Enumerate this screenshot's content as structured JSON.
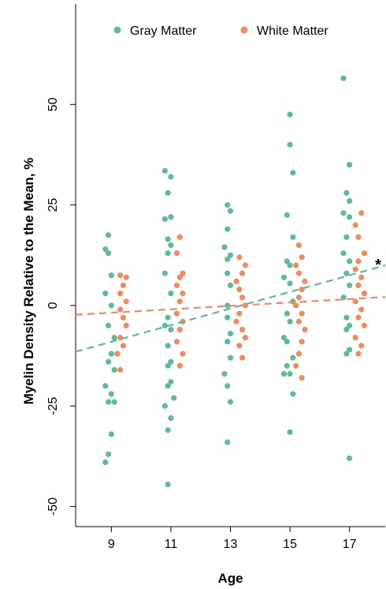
{
  "chart_data": {
    "type": "scatter",
    "title": "",
    "xlabel": "Age",
    "ylabel": "Myelin Density Relative to the Mean, %",
    "xlim": [
      7.8,
      18.2
    ],
    "ylim": [
      -55,
      75
    ],
    "x_ticks": [
      9,
      11,
      13,
      15,
      17
    ],
    "x_tick_labels": [
      "9",
      "11",
      "13",
      "15",
      "17"
    ],
    "y_ticks": [
      -50,
      -25,
      0,
      25,
      50
    ],
    "y_tick_labels": [
      "-50",
      "-25",
      "0",
      "25",
      "50"
    ],
    "grid": false,
    "legend_position": "top",
    "annotation": "*",
    "series": [
      {
        "name": "Gray Matter",
        "color": "#5dbb97",
        "trend": {
          "x": [
            7.8,
            18.2
          ],
          "y": [
            -11.5,
            10.0
          ],
          "style": "dashed"
        },
        "points": [
          [
            8.9,
            17.5
          ],
          [
            8.8,
            14
          ],
          [
            8.9,
            13
          ],
          [
            9.0,
            7.5
          ],
          [
            8.8,
            3
          ],
          [
            9.0,
            0
          ],
          [
            8.9,
            -5
          ],
          [
            9.1,
            -8
          ],
          [
            9.0,
            -12
          ],
          [
            8.9,
            -14
          ],
          [
            9.1,
            -16
          ],
          [
            8.8,
            -20
          ],
          [
            9.0,
            -22
          ],
          [
            9.1,
            -24
          ],
          [
            8.9,
            -24
          ],
          [
            9.0,
            -32
          ],
          [
            8.9,
            -37
          ],
          [
            8.8,
            -39
          ],
          [
            10.8,
            33.5
          ],
          [
            11.0,
            32
          ],
          [
            10.9,
            28
          ],
          [
            11.0,
            22
          ],
          [
            10.8,
            21.5
          ],
          [
            10.9,
            16.5
          ],
          [
            11.0,
            15
          ],
          [
            10.9,
            13
          ],
          [
            10.8,
            8
          ],
          [
            11.0,
            3
          ],
          [
            10.9,
            -3
          ],
          [
            10.8,
            -5
          ],
          [
            11.0,
            -6
          ],
          [
            10.9,
            -10
          ],
          [
            11.0,
            -14
          ],
          [
            10.9,
            -15
          ],
          [
            11.0,
            -19
          ],
          [
            10.9,
            -20
          ],
          [
            11.1,
            -23
          ],
          [
            10.8,
            -25
          ],
          [
            11.0,
            -28
          ],
          [
            10.9,
            -31
          ],
          [
            10.9,
            -44.5
          ],
          [
            12.9,
            25
          ],
          [
            13.0,
            23.5
          ],
          [
            12.9,
            19
          ],
          [
            12.8,
            14.5
          ],
          [
            13.0,
            12.5
          ],
          [
            12.9,
            11.5
          ],
          [
            12.9,
            8
          ],
          [
            13.0,
            5
          ],
          [
            12.9,
            0
          ],
          [
            12.9,
            -3
          ],
          [
            13.0,
            -7
          ],
          [
            12.9,
            -9
          ],
          [
            13.0,
            -13
          ],
          [
            12.8,
            -17
          ],
          [
            12.9,
            -20
          ],
          [
            13.0,
            -24
          ],
          [
            12.9,
            -34
          ],
          [
            15.0,
            47.5
          ],
          [
            15.0,
            40
          ],
          [
            15.1,
            33
          ],
          [
            14.9,
            22.5
          ],
          [
            15.1,
            17
          ],
          [
            14.9,
            11
          ],
          [
            15.0,
            10
          ],
          [
            14.8,
            7
          ],
          [
            15.0,
            5.5
          ],
          [
            15.1,
            1
          ],
          [
            14.9,
            -2
          ],
          [
            15.0,
            -4
          ],
          [
            14.8,
            -8
          ],
          [
            14.9,
            -9
          ],
          [
            15.1,
            -13
          ],
          [
            14.9,
            -15
          ],
          [
            15.0,
            -17
          ],
          [
            14.8,
            -17
          ],
          [
            15.1,
            -22
          ],
          [
            15.0,
            -31.5
          ],
          [
            16.8,
            56.5
          ],
          [
            17.0,
            35
          ],
          [
            16.9,
            28
          ],
          [
            17.0,
            26
          ],
          [
            16.8,
            23
          ],
          [
            17.0,
            22
          ],
          [
            16.9,
            17
          ],
          [
            16.8,
            13
          ],
          [
            17.0,
            11
          ],
          [
            16.9,
            8
          ],
          [
            17.0,
            5
          ],
          [
            16.8,
            2
          ],
          [
            16.9,
            -3
          ],
          [
            17.0,
            -5
          ],
          [
            16.9,
            -6
          ],
          [
            17.0,
            -11
          ],
          [
            16.9,
            -12
          ],
          [
            17.0,
            -38
          ]
        ]
      },
      {
        "name": "White Matter",
        "color": "#f28a5e",
        "trend": {
          "x": [
            7.8,
            18.2
          ],
          "y": [
            -2.3,
            2.1
          ],
          "style": "dashed"
        },
        "points": [
          [
            9.3,
            7.5
          ],
          [
            9.5,
            7
          ],
          [
            9.4,
            5
          ],
          [
            9.3,
            3
          ],
          [
            9.5,
            1
          ],
          [
            9.3,
            -1
          ],
          [
            9.4,
            -3
          ],
          [
            9.5,
            -5
          ],
          [
            9.3,
            -8
          ],
          [
            9.4,
            -10
          ],
          [
            9.2,
            -12
          ],
          [
            9.3,
            -16
          ],
          [
            11.3,
            17
          ],
          [
            11.2,
            13
          ],
          [
            11.4,
            8
          ],
          [
            11.3,
            7
          ],
          [
            11.2,
            5
          ],
          [
            11.4,
            3
          ],
          [
            11.3,
            1
          ],
          [
            11.2,
            -2
          ],
          [
            11.4,
            -4
          ],
          [
            11.3,
            -6
          ],
          [
            11.2,
            -9
          ],
          [
            11.4,
            -12
          ],
          [
            11.3,
            -15
          ],
          [
            13.3,
            12
          ],
          [
            13.5,
            10
          ],
          [
            13.4,
            8
          ],
          [
            13.2,
            6
          ],
          [
            13.3,
            4
          ],
          [
            13.4,
            2
          ],
          [
            13.5,
            0
          ],
          [
            13.3,
            -2
          ],
          [
            13.2,
            -4
          ],
          [
            13.4,
            -6
          ],
          [
            13.5,
            -8
          ],
          [
            13.3,
            -10
          ],
          [
            13.4,
            -13
          ],
          [
            15.3,
            15
          ],
          [
            15.4,
            12
          ],
          [
            15.2,
            10
          ],
          [
            15.3,
            8
          ],
          [
            15.5,
            6
          ],
          [
            15.4,
            4
          ],
          [
            15.3,
            2
          ],
          [
            15.2,
            0
          ],
          [
            15.4,
            -2
          ],
          [
            15.3,
            -4
          ],
          [
            15.5,
            -6
          ],
          [
            15.4,
            -9
          ],
          [
            15.3,
            -12
          ],
          [
            15.2,
            -15
          ],
          [
            15.4,
            -18
          ],
          [
            17.4,
            23
          ],
          [
            17.2,
            20
          ],
          [
            17.3,
            17
          ],
          [
            17.5,
            13
          ],
          [
            17.3,
            11
          ],
          [
            17.2,
            9
          ],
          [
            17.4,
            7
          ],
          [
            17.3,
            5
          ],
          [
            17.5,
            3
          ],
          [
            17.2,
            1
          ],
          [
            17.4,
            -1
          ],
          [
            17.3,
            -3
          ],
          [
            17.5,
            -5
          ],
          [
            17.2,
            -8
          ],
          [
            17.4,
            -10
          ],
          [
            17.3,
            -12
          ]
        ]
      }
    ]
  }
}
